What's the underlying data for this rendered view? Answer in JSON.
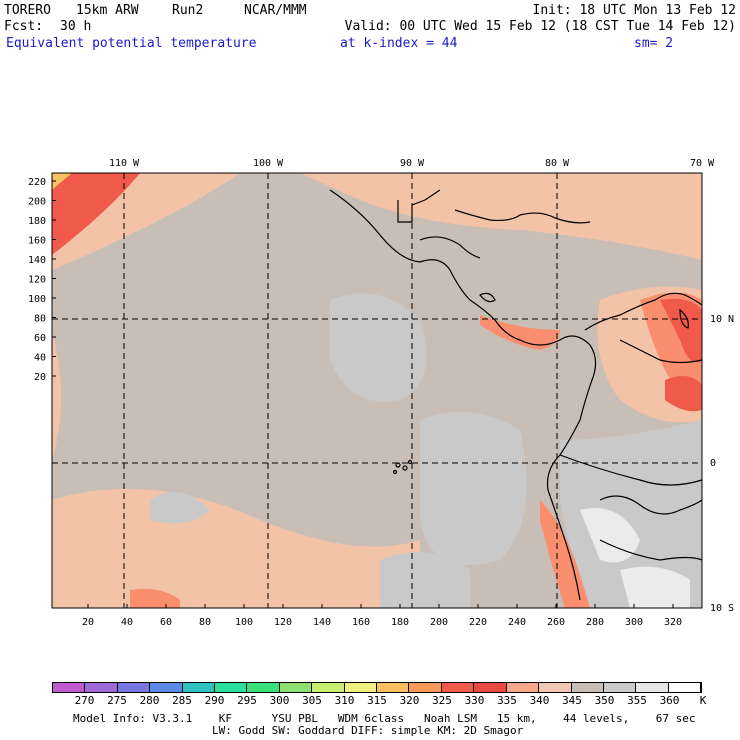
{
  "header": {
    "model": "TORERO",
    "resolution": "15km ARW",
    "run": "Run2",
    "org": "NCAR/MMM",
    "init": "Init: 18 UTC Mon 13 Feb 12",
    "fcst_label": "Fcst:",
    "fcst_value": "30 h",
    "valid": "Valid: 00 UTC Wed 15 Feb 12 (18 CST Tue 14 Feb 12)",
    "field": "Equivalent potential temperature",
    "level": "at k-index = 44",
    "smoothing": "sm= 2"
  },
  "map": {
    "top_lon_labels": [
      "110 W",
      "100 W",
      "90 W",
      "80 W",
      "70 W"
    ],
    "right_lat_labels": [
      "10 N",
      "0",
      "10 S"
    ],
    "left_y_ticks": [
      "220",
      "200",
      "180",
      "160",
      "140",
      "120",
      "100",
      "80",
      "60",
      "40",
      "20"
    ],
    "bottom_x_ticks": [
      "20",
      "40",
      "60",
      "80",
      "100",
      "120",
      "140",
      "160",
      "180",
      "200",
      "220",
      "240",
      "260",
      "280",
      "300",
      "320"
    ],
    "colors": {
      "background_field": "#c8beb6",
      "warm_field": "#f3c3a8",
      "gray_field": "#c9c9c9",
      "light_field": "#ebebeb",
      "hot_field": "#ef5a4a",
      "orange_field": "#f98f6e",
      "coast": "#000000",
      "grid": "#000000"
    }
  },
  "colorbar": {
    "labels": [
      "270",
      "275",
      "280",
      "285",
      "290",
      "295",
      "300",
      "305",
      "310",
      "315",
      "320",
      "325",
      "330",
      "335",
      "340",
      "345",
      "350",
      "355",
      "360"
    ],
    "unit": "K",
    "colors": [
      "#c25ad2",
      "#a06ad6",
      "#7a76e0",
      "#5a8ae4",
      "#2fc0c0",
      "#2ee0a0",
      "#3ae07a",
      "#8ee070",
      "#c8f070",
      "#f0f080",
      "#f8c060",
      "#f89a5a",
      "#f05a48",
      "#e64a40",
      "#f7a88a",
      "#f3c8b2",
      "#c8beb6",
      "#cacaca",
      "#e6e6e6",
      "#ffffff"
    ]
  },
  "footer": {
    "line1": "Model Info: V3.3.1    KF      YSU PBL   WDM 6class   Noah LSM   15 km,    44 levels,    67 sec",
    "line2": "LW: Godd SW: Goddard DIFF: simple KM: 2D Smagor"
  }
}
